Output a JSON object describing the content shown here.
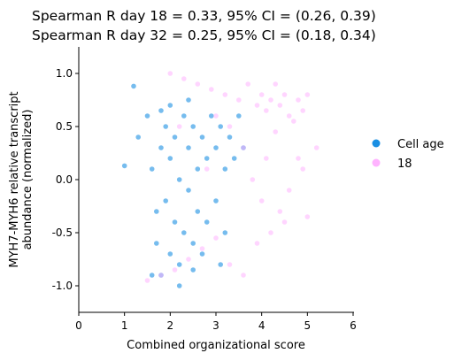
{
  "chart_data": {
    "type": "scatter",
    "title_lines": [
      "Spearman R day 18 = 0.33, 95% CI = (0.26, 0.39)",
      "Spearman R day 32 = 0.25, 95% CI = (0.18, 0.34)"
    ],
    "xlabel": "Combined organizational score",
    "ylabel_lines": [
      "MYH7-MYH6 relative transcript",
      "abundance (normalized)"
    ],
    "xlim": [
      0,
      6
    ],
    "ylim": [
      -1.25,
      1.25
    ],
    "xticks": [
      "0",
      "1",
      "2",
      "3",
      "4",
      "5",
      "6"
    ],
    "yticks": [
      "-1.0",
      "-0.5",
      "0.0",
      "0.5",
      "1.0"
    ],
    "legend": {
      "title": "Cell age",
      "placement": "right",
      "entries": [
        {
          "label": "18",
          "color": "#ffb3ff"
        }
      ]
    },
    "series": [
      {
        "color": "#1a8fe3",
        "points": [
          [
            1.5,
            0.6
          ],
          [
            1.6,
            0.1
          ],
          [
            1.7,
            -0.3
          ],
          [
            1.7,
            -0.6
          ],
          [
            1.8,
            0.3
          ],
          [
            1.8,
            -0.9
          ],
          [
            1.9,
            0.5
          ],
          [
            1.9,
            -0.2
          ],
          [
            2.0,
            0.2
          ],
          [
            2.0,
            -0.7
          ],
          [
            2.0,
            0.7
          ],
          [
            2.1,
            -0.4
          ],
          [
            2.1,
            0.4
          ],
          [
            2.2,
            0.0
          ],
          [
            2.2,
            -0.8
          ],
          [
            2.3,
            0.6
          ],
          [
            2.3,
            -0.5
          ],
          [
            2.4,
            0.3
          ],
          [
            2.4,
            -0.1
          ],
          [
            2.5,
            0.5
          ],
          [
            2.5,
            -0.6
          ],
          [
            2.6,
            0.1
          ],
          [
            2.6,
            -0.3
          ],
          [
            2.7,
            0.4
          ],
          [
            2.7,
            -0.7
          ],
          [
            2.8,
            0.2
          ],
          [
            2.8,
            -0.4
          ],
          [
            2.9,
            0.6
          ],
          [
            3.0,
            0.3
          ],
          [
            3.0,
            -0.2
          ],
          [
            3.1,
            0.5
          ],
          [
            3.2,
            0.1
          ],
          [
            3.2,
            -0.5
          ],
          [
            3.3,
            0.4
          ],
          [
            3.4,
            0.2
          ],
          [
            3.5,
            0.6
          ],
          [
            3.6,
            0.3
          ],
          [
            1.3,
            0.4
          ],
          [
            1.2,
            0.88
          ],
          [
            1.0,
            0.13
          ],
          [
            1.6,
            -0.9
          ],
          [
            2.2,
            -1.0
          ],
          [
            2.5,
            -0.85
          ],
          [
            1.8,
            0.65
          ],
          [
            2.4,
            0.75
          ],
          [
            3.1,
            -0.8
          ]
        ]
      },
      {
        "color": "#ffb3ff",
        "points": [
          [
            2.0,
            1.0
          ],
          [
            2.3,
            0.95
          ],
          [
            2.6,
            0.9
          ],
          [
            2.9,
            0.85
          ],
          [
            3.2,
            0.8
          ],
          [
            3.5,
            0.75
          ],
          [
            3.7,
            0.9
          ],
          [
            3.9,
            0.7
          ],
          [
            4.0,
            0.8
          ],
          [
            4.1,
            0.65
          ],
          [
            4.2,
            0.75
          ],
          [
            4.3,
            0.9
          ],
          [
            4.4,
            0.7
          ],
          [
            4.5,
            0.8
          ],
          [
            4.6,
            0.6
          ],
          [
            4.7,
            0.55
          ],
          [
            4.8,
            0.75
          ],
          [
            4.9,
            0.65
          ],
          [
            5.0,
            0.8
          ],
          [
            3.0,
            0.6
          ],
          [
            3.3,
            0.5
          ],
          [
            3.6,
            0.3
          ],
          [
            3.8,
            0.0
          ],
          [
            4.0,
            -0.2
          ],
          [
            4.2,
            -0.5
          ],
          [
            4.4,
            -0.3
          ],
          [
            4.6,
            -0.1
          ],
          [
            4.8,
            0.2
          ],
          [
            1.5,
            -0.95
          ],
          [
            1.8,
            -0.9
          ],
          [
            2.1,
            -0.85
          ],
          [
            2.4,
            -0.75
          ],
          [
            2.7,
            -0.65
          ],
          [
            3.0,
            -0.55
          ],
          [
            3.3,
            -0.8
          ],
          [
            3.6,
            -0.9
          ],
          [
            3.9,
            -0.6
          ],
          [
            4.1,
            0.2
          ],
          [
            4.5,
            -0.4
          ],
          [
            4.9,
            0.1
          ],
          [
            5.2,
            0.3
          ],
          [
            5.0,
            -0.35
          ],
          [
            4.3,
            0.45
          ],
          [
            2.2,
            0.5
          ],
          [
            2.8,
            0.1
          ]
        ]
      }
    ]
  }
}
